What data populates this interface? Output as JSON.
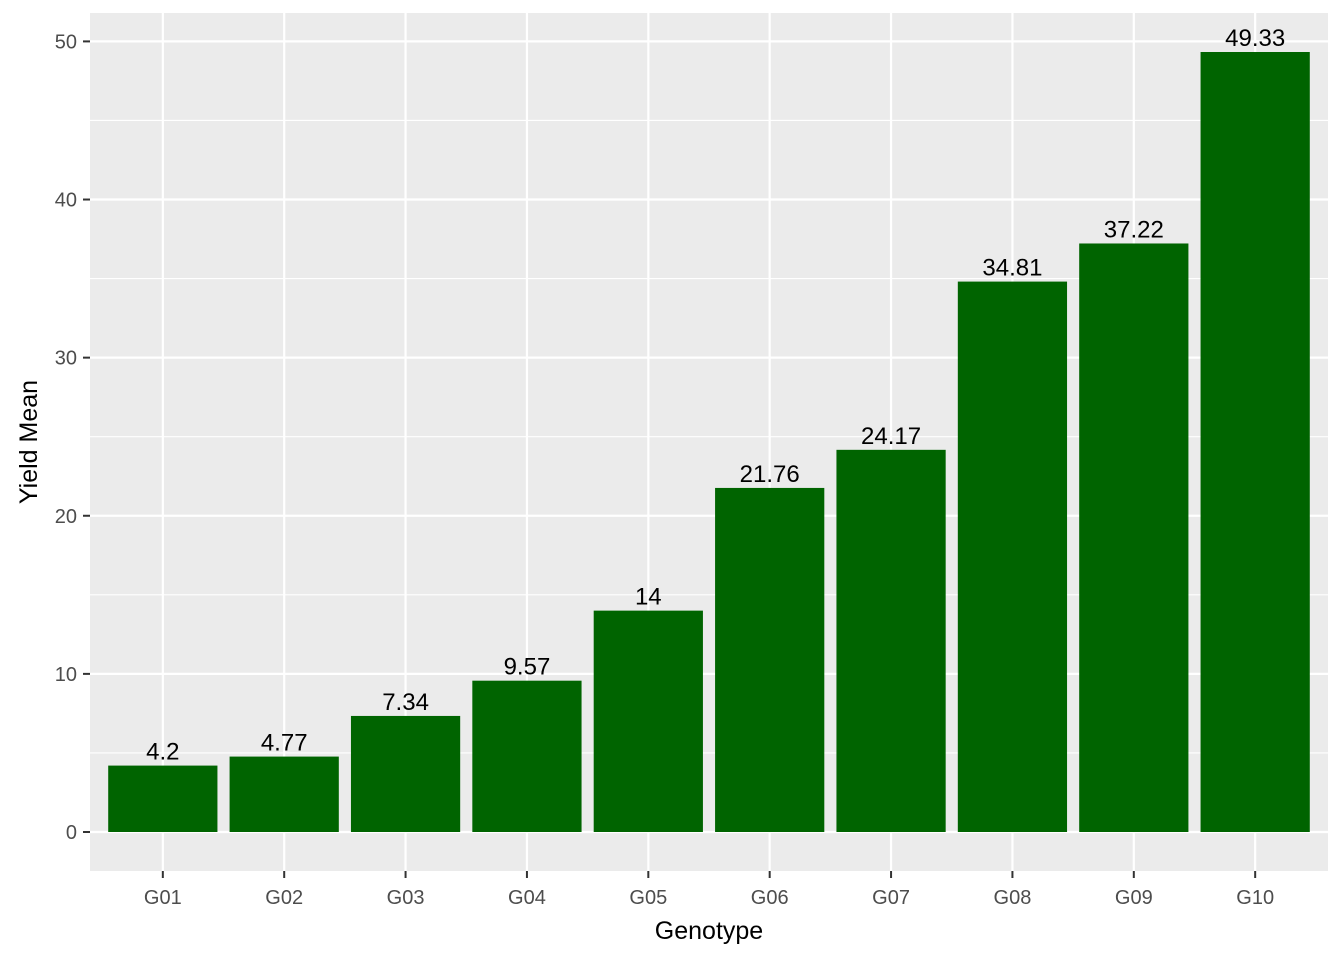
{
  "chart_data": {
    "type": "bar",
    "categories": [
      "G01",
      "G02",
      "G03",
      "G04",
      "G05",
      "G06",
      "G07",
      "G08",
      "G09",
      "G10"
    ],
    "values": [
      4.2,
      4.77,
      7.34,
      9.57,
      14,
      21.76,
      24.17,
      34.81,
      37.22,
      49.33
    ],
    "data_labels": [
      "4.2",
      "4.77",
      "7.34",
      "9.57",
      "14",
      "21.76",
      "24.17",
      "34.81",
      "37.22",
      "49.33"
    ],
    "title": "",
    "xlabel": "Genotype",
    "ylabel": "Yield Mean",
    "ylim": [
      -2.4665,
      51.7965
    ],
    "yticks": [
      0,
      10,
      20,
      30,
      40,
      50
    ],
    "ytick_labels": [
      "0",
      "10",
      "20",
      "30",
      "40",
      "50"
    ],
    "grid": true,
    "legend": "none",
    "colors": {
      "bar": "#006400",
      "panel_background": "#EBEBEB",
      "grid_major": "#FFFFFF",
      "tick_text": "#4D4D4D",
      "tick_mark": "#333333"
    }
  }
}
